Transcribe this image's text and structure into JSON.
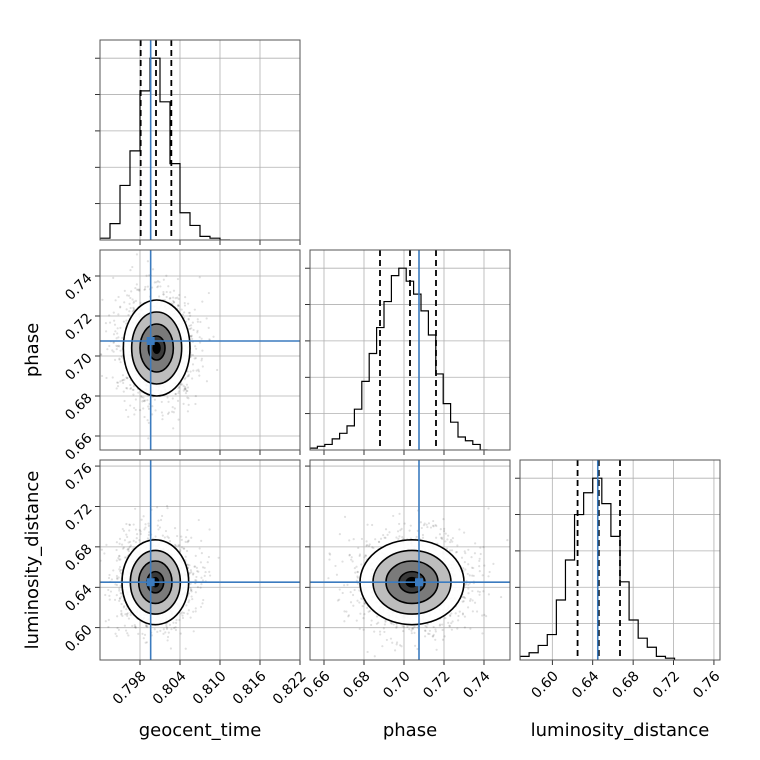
{
  "chart_data": {
    "type": "corner",
    "parameters": [
      "geocent_time",
      "phase",
      "luminosity_distance"
    ],
    "truth_color": "#3b7bbf",
    "truths": {
      "geocent_time": 0.7996,
      "phase": 0.7075,
      "luminosity_distance": 0.645
    },
    "axes": {
      "geocent_time": {
        "range": [
          0.792,
          0.822
        ],
        "ticks": [
          "0.798",
          "0.804",
          "0.810",
          "0.816",
          "0.822"
        ]
      },
      "phase": {
        "range": [
          0.653,
          0.753
        ],
        "ticks": [
          "0.66",
          "0.68",
          "0.70",
          "0.72",
          "0.74"
        ]
      },
      "luminosity_distance": {
        "range": [
          0.568,
          0.766
        ],
        "ticks": [
          "0.60",
          "0.64",
          "0.68",
          "0.72",
          "0.76"
        ]
      }
    },
    "marginals": {
      "geocent_time": {
        "quantiles": [
          0.7981,
          0.8004,
          0.8027
        ],
        "bins": [
          0.792,
          0.7935,
          0.795,
          0.7965,
          0.798,
          0.7995,
          0.801,
          0.8025,
          0.804,
          0.8055,
          0.807,
          0.8085,
          0.81,
          0.8115
        ],
        "counts": [
          1,
          9,
          30,
          49,
          82,
          100,
          76,
          42,
          15,
          8,
          2,
          1,
          0
        ]
      },
      "phase": {
        "quantiles": [
          0.688,
          0.703,
          0.716
        ],
        "bins": [
          0.653,
          0.6567,
          0.6604,
          0.6641,
          0.6678,
          0.6715,
          0.6752,
          0.6789,
          0.6826,
          0.6863,
          0.69,
          0.6937,
          0.6974,
          0.7011,
          0.7048,
          0.7085,
          0.7122,
          0.7159,
          0.7196,
          0.7233,
          0.727,
          0.7307,
          0.7344,
          0.7381,
          0.7418
        ],
        "counts": [
          1,
          2,
          3,
          6,
          9,
          13,
          22,
          37,
          52,
          66,
          80,
          94,
          98,
          91,
          84,
          75,
          62,
          41,
          25,
          15,
          7,
          5,
          3,
          0
        ]
      },
      "luminosity_distance": {
        "quantiles": [
          0.625,
          0.646,
          0.667
        ],
        "bins": [
          0.568,
          0.577,
          0.586,
          0.595,
          0.604,
          0.613,
          0.622,
          0.631,
          0.64,
          0.649,
          0.658,
          0.667,
          0.676,
          0.685,
          0.694,
          0.703,
          0.712,
          0.721
        ],
        "counts": [
          2,
          4,
          8,
          14,
          33,
          55,
          80,
          92,
          100,
          86,
          68,
          43,
          22,
          12,
          7,
          2,
          1
        ]
      }
    },
    "joint": [
      {
        "x": "geocent_time",
        "y": "phase",
        "center": [
          0.8005,
          0.704
        ],
        "sigma": [
          0.0025,
          0.012
        ],
        "levels": [
          0.5,
          1.0,
          1.5,
          2.0
        ]
      },
      {
        "x": "geocent_time",
        "y": "luminosity_distance",
        "center": [
          0.8003,
          0.645
        ],
        "sigma": [
          0.0025,
          0.021
        ],
        "levels": [
          0.5,
          1.0,
          1.5,
          2.0
        ]
      },
      {
        "x": "phase",
        "y": "luminosity_distance",
        "center": [
          0.704,
          0.645
        ],
        "sigma": [
          0.013,
          0.021
        ],
        "levels": [
          0.5,
          1.0,
          1.5,
          2.0
        ]
      }
    ]
  }
}
